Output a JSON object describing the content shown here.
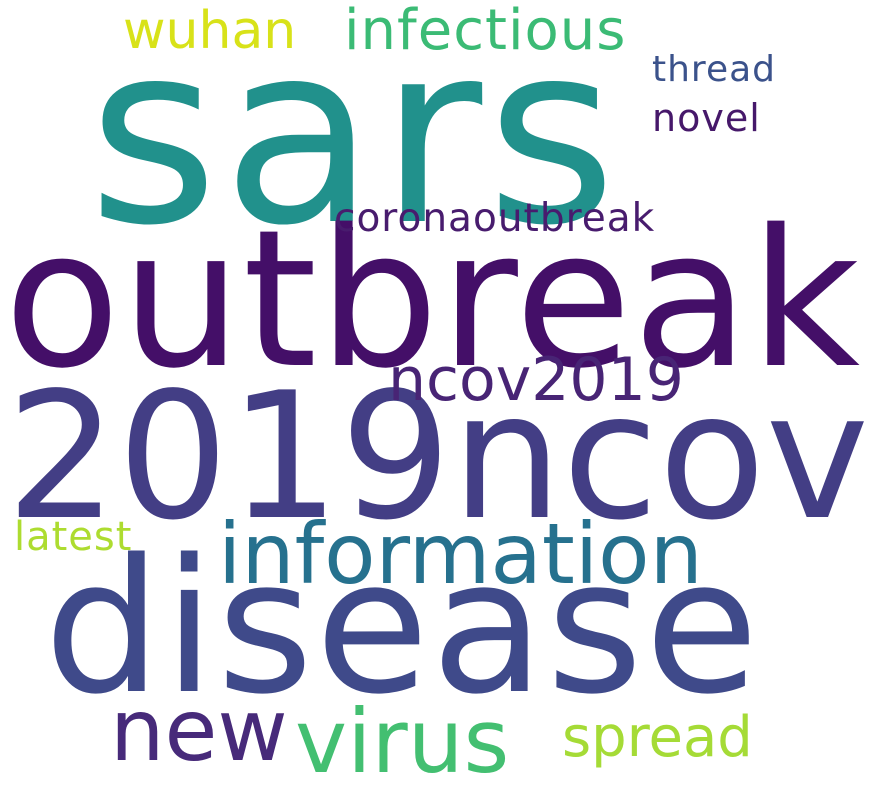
{
  "words": {
    "sars": {
      "text": "sars",
      "color": "#21918c"
    },
    "outbreak": {
      "text": "outbreak",
      "color": "#440f68"
    },
    "2019ncov": {
      "text": "2019ncov",
      "color": "#433e85"
    },
    "disease": {
      "text": "disease",
      "color": "#3f4a8a"
    },
    "information": {
      "text": "information",
      "color": "#26718e"
    },
    "new": {
      "text": "new",
      "color": "#472a7a"
    },
    "virus": {
      "text": "virus",
      "color": "#43bf71"
    },
    "spread": {
      "text": "spread",
      "color": "#a5db36"
    },
    "ncov2019": {
      "text": "ncov2019",
      "color": "#482475"
    },
    "coronaoutbreak": {
      "text": "coronaoutbreak",
      "color": "#481c6e"
    },
    "wuhan": {
      "text": "wuhan",
      "color": "#d8e219"
    },
    "infectious": {
      "text": "infectious",
      "color": "#3bbb75"
    },
    "thread": {
      "text": "thread",
      "color": "#3b528b"
    },
    "novel": {
      "text": "novel",
      "color": "#46186a"
    },
    "latest": {
      "text": "latest",
      "color": "#addc30"
    }
  }
}
